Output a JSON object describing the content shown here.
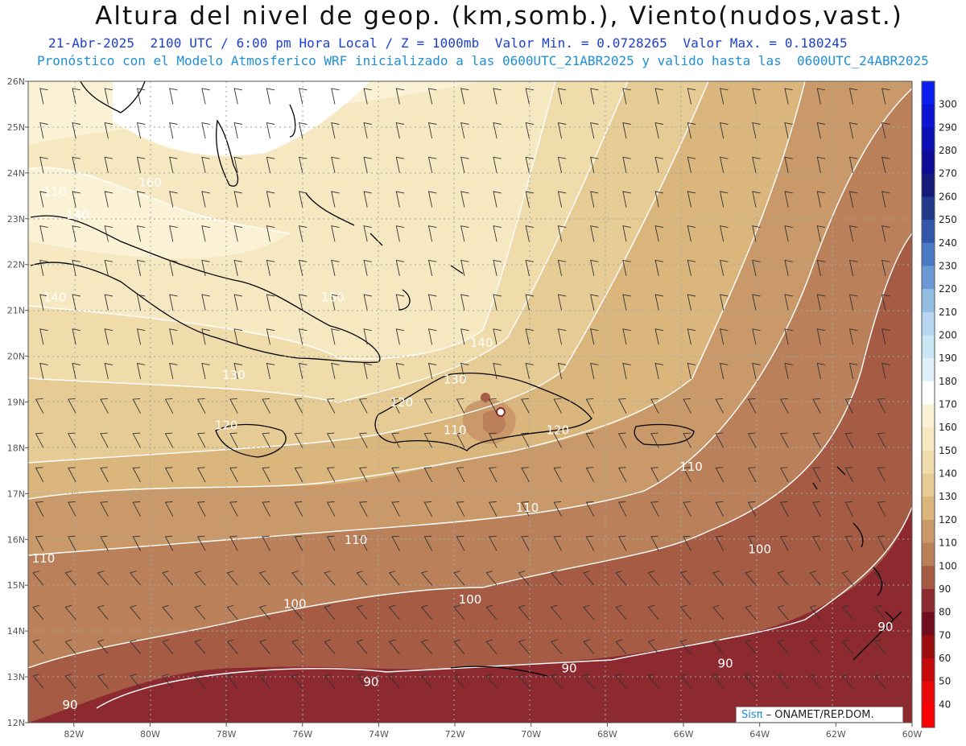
{
  "header": {
    "title": "Altura del nivel de geop. (km,somb.), Viento(nudos,vast.)",
    "subtitle1": "21-Abr-2025  2100 UTC / 6:00 pm Hora Local / Z = 1000mb  Valor Min. = 0.0728265  Valor Max. = 0.180245",
    "subtitle2": "Pronóstico con el Modelo Atmosferico WRF inicializado a las 0600UTC_21ABR2025 y valido hasta las  0600UTC_24ABR2025"
  },
  "map": {
    "lat_labels": [
      "26N",
      "25N",
      "24N",
      "23N",
      "22N",
      "21N",
      "20N",
      "19N",
      "18N",
      "17N",
      "16N",
      "15N",
      "14N",
      "13N",
      "12N"
    ],
    "lon_labels": [
      "82W",
      "80W",
      "78W",
      "76W",
      "74W",
      "72W",
      "70W",
      "68W",
      "66W",
      "64W",
      "62W",
      "60W"
    ],
    "lat_range": [
      12,
      26
    ],
    "lon_range": [
      -83.2,
      -60.0
    ],
    "contour_labels": [
      {
        "text": "110",
        "lon": -82.5,
        "lat": 23.5
      },
      {
        "text": "160",
        "lon": -80.0,
        "lat": 23.7
      },
      {
        "text": "140",
        "lon": -81.9,
        "lat": 23.0
      },
      {
        "text": "140",
        "lon": -82.5,
        "lat": 21.2
      },
      {
        "text": "150",
        "lon": -75.2,
        "lat": 21.2
      },
      {
        "text": "140",
        "lon": -71.3,
        "lat": 20.2
      },
      {
        "text": "130",
        "lon": -77.8,
        "lat": 19.5
      },
      {
        "text": "130",
        "lon": -72.0,
        "lat": 19.4
      },
      {
        "text": "120",
        "lon": -73.4,
        "lat": 18.9
      },
      {
        "text": "120",
        "lon": -78.0,
        "lat": 18.4
      },
      {
        "text": "110",
        "lon": -72.0,
        "lat": 18.3
      },
      {
        "text": "120",
        "lon": -69.3,
        "lat": 18.3
      },
      {
        "text": "110",
        "lon": -65.8,
        "lat": 17.5
      },
      {
        "text": "110",
        "lon": -70.1,
        "lat": 16.6
      },
      {
        "text": "110",
        "lon": -74.6,
        "lat": 15.9
      },
      {
        "text": "110",
        "lon": -82.8,
        "lat": 15.5
      },
      {
        "text": "100",
        "lon": -64.0,
        "lat": 15.7
      },
      {
        "text": "100",
        "lon": -76.2,
        "lat": 14.5
      },
      {
        "text": "100",
        "lon": -71.6,
        "lat": 14.6
      },
      {
        "text": "90",
        "lon": -60.7,
        "lat": 14.0
      },
      {
        "text": "90",
        "lon": -64.9,
        "lat": 13.2
      },
      {
        "text": "90",
        "lon": -69.0,
        "lat": 13.1
      },
      {
        "text": "90",
        "lon": -74.2,
        "lat": 12.8
      },
      {
        "text": "90",
        "lon": -82.1,
        "lat": 12.3
      }
    ]
  },
  "colorbar": {
    "labels": [
      "300",
      "290",
      "280",
      "270",
      "260",
      "250",
      "240",
      "230",
      "220",
      "210",
      "200",
      "190",
      "180",
      "170",
      "160",
      "150",
      "140",
      "130",
      "120",
      "110",
      "100",
      "90",
      "80",
      "70",
      "60",
      "50",
      "40"
    ],
    "colors": [
      "#0a1ef0",
      "#0a14d2",
      "#0c0fb4",
      "#0d0c96",
      "#141a7a",
      "#203a8a",
      "#3257a8",
      "#4a78c2",
      "#6a98d4",
      "#94bde4",
      "#b6d7ef",
      "#cbe6f4",
      "#dff0f8",
      "#ffffff",
      "#fbf2d6",
      "#f6e8c0",
      "#efdcaa",
      "#e6cc94",
      "#dab57c",
      "#c9996a",
      "#b9805a",
      "#a55b44",
      "#8c2a30",
      "#6e0e1e",
      "#9b0e0e",
      "#c40a0a",
      "#e80808",
      "#fb0000"
    ]
  },
  "credit": {
    "sis": "Sisπ",
    "org": "– ONAMET/REP.DOM."
  }
}
